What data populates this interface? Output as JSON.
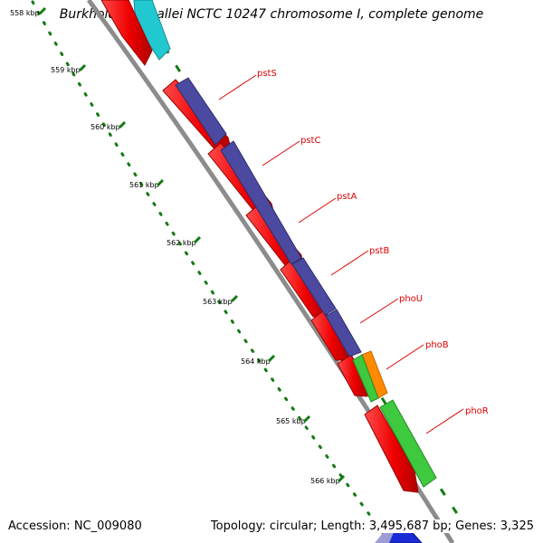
{
  "title": "Burkholderia mallei NCTC 10247 chromosome I, complete genome",
  "accession_text": "Accession: NC_009080",
  "summary_text": "Topology: circular; Length: 3,495,687 bp; Genes: 3,325",
  "ticks": [
    {
      "label": "558 kbp"
    },
    {
      "label": "559 kbp"
    },
    {
      "label": "560 kbp"
    },
    {
      "label": "561 kbp"
    },
    {
      "label": "562 kbp"
    },
    {
      "label": "563 kbp"
    },
    {
      "label": "564 kbp"
    },
    {
      "label": "565 kbp"
    },
    {
      "label": "566 kbp"
    }
  ],
  "gene_labels": [
    {
      "name": "pstS"
    },
    {
      "name": "pstC"
    },
    {
      "name": "pstA"
    },
    {
      "name": "pstB"
    },
    {
      "name": "phoU"
    },
    {
      "name": "phoB"
    },
    {
      "name": "phoR"
    }
  ],
  "colors": {
    "cds": "#ee0000",
    "operon": "#4b4aa0",
    "phoU_feature": "#ff8a00",
    "phoR_feature": "#3ec93e",
    "top_feature": "#22c8d0",
    "bottom_feature": "#1a2bd6",
    "backbone": "#8c8c8c",
    "tick": "#137a13",
    "label_line": "#e00000"
  }
}
